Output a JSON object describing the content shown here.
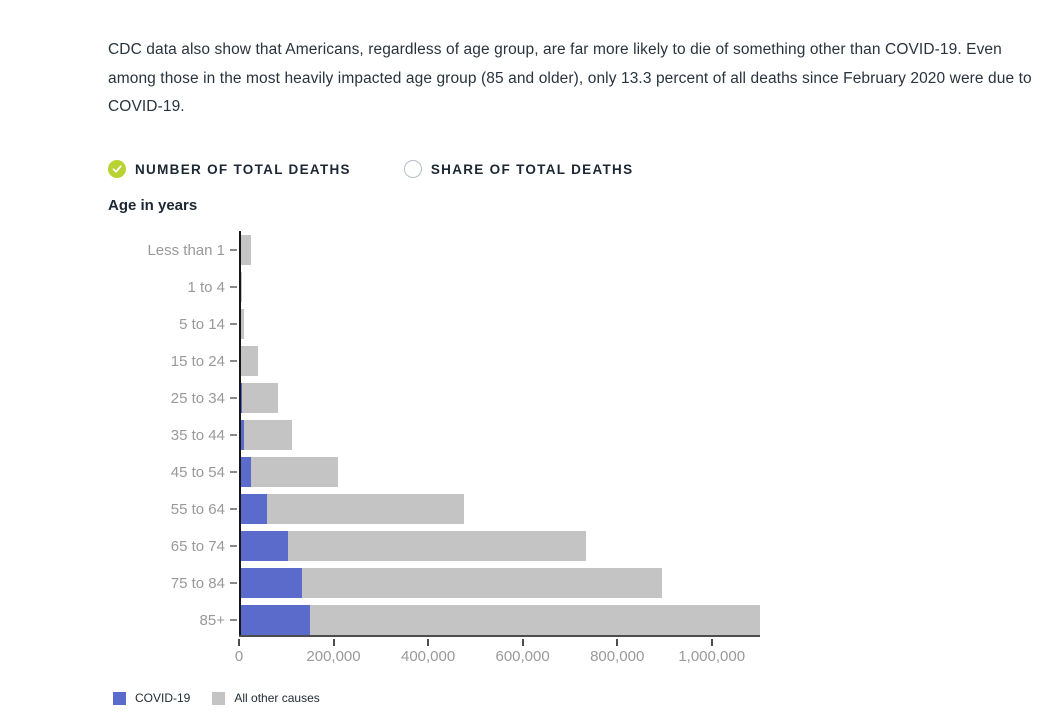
{
  "intro_paragraph": "CDC data also show that Americans, regardless of age group, are far more likely to die of something other than COVID-19. Even among those in the most heavily impacted age group (85 and older), only 13.3 percent of all deaths since February 2020 were due to COVID-19.",
  "toggle": {
    "options": [
      {
        "label": "NUMBER OF TOTAL DEATHS",
        "selected": true
      },
      {
        "label": "SHARE OF TOTAL DEATHS",
        "selected": false
      }
    ]
  },
  "colors": {
    "selected_radio_green": "#b9d333",
    "covid_blue": "#5a6bcc",
    "other_gray": "#c4c4c4",
    "axis_dark": "#4d4d4d",
    "label_gray": "#999999",
    "text_dark": "#1b2733"
  },
  "chart_data": {
    "type": "bar",
    "orientation": "horizontal",
    "stacked": true,
    "axis_title": "Age in years",
    "categories": [
      "Less than 1",
      "1 to 4",
      "5 to 14",
      "15 to 24",
      "25 to 34",
      "35 to 44",
      "45 to 54",
      "55 to 64",
      "65 to 74",
      "75 to 84",
      "85+"
    ],
    "series": [
      {
        "name": "COVID-19",
        "color": "#5a6bcc",
        "values": [
          200,
          60,
          150,
          800,
          1800,
          5500,
          20000,
          54000,
          100000,
          129000,
          146000
        ]
      },
      {
        "name": "All other causes",
        "color": "#c4c4c4",
        "values": [
          20800,
          2000,
          5350,
          36200,
          76200,
          102500,
          186000,
          418000,
          629000,
          761000,
          952000
        ]
      }
    ],
    "x_ticks": [
      {
        "value": 0,
        "label": "0"
      },
      {
        "value": 200000,
        "label": "200,000"
      },
      {
        "value": 400000,
        "label": "400,000"
      },
      {
        "value": 600000,
        "label": "600,000"
      },
      {
        "value": 800000,
        "label": "800,000"
      },
      {
        "value": 1000000,
        "label": "1,000,000"
      }
    ],
    "xlim": [
      0,
      1100000
    ],
    "grid": false,
    "legend_position": "bottom",
    "legend": [
      {
        "label": "COVID-19",
        "color": "#5a6bcc"
      },
      {
        "label": "All other causes",
        "color": "#c4c4c4"
      }
    ]
  }
}
